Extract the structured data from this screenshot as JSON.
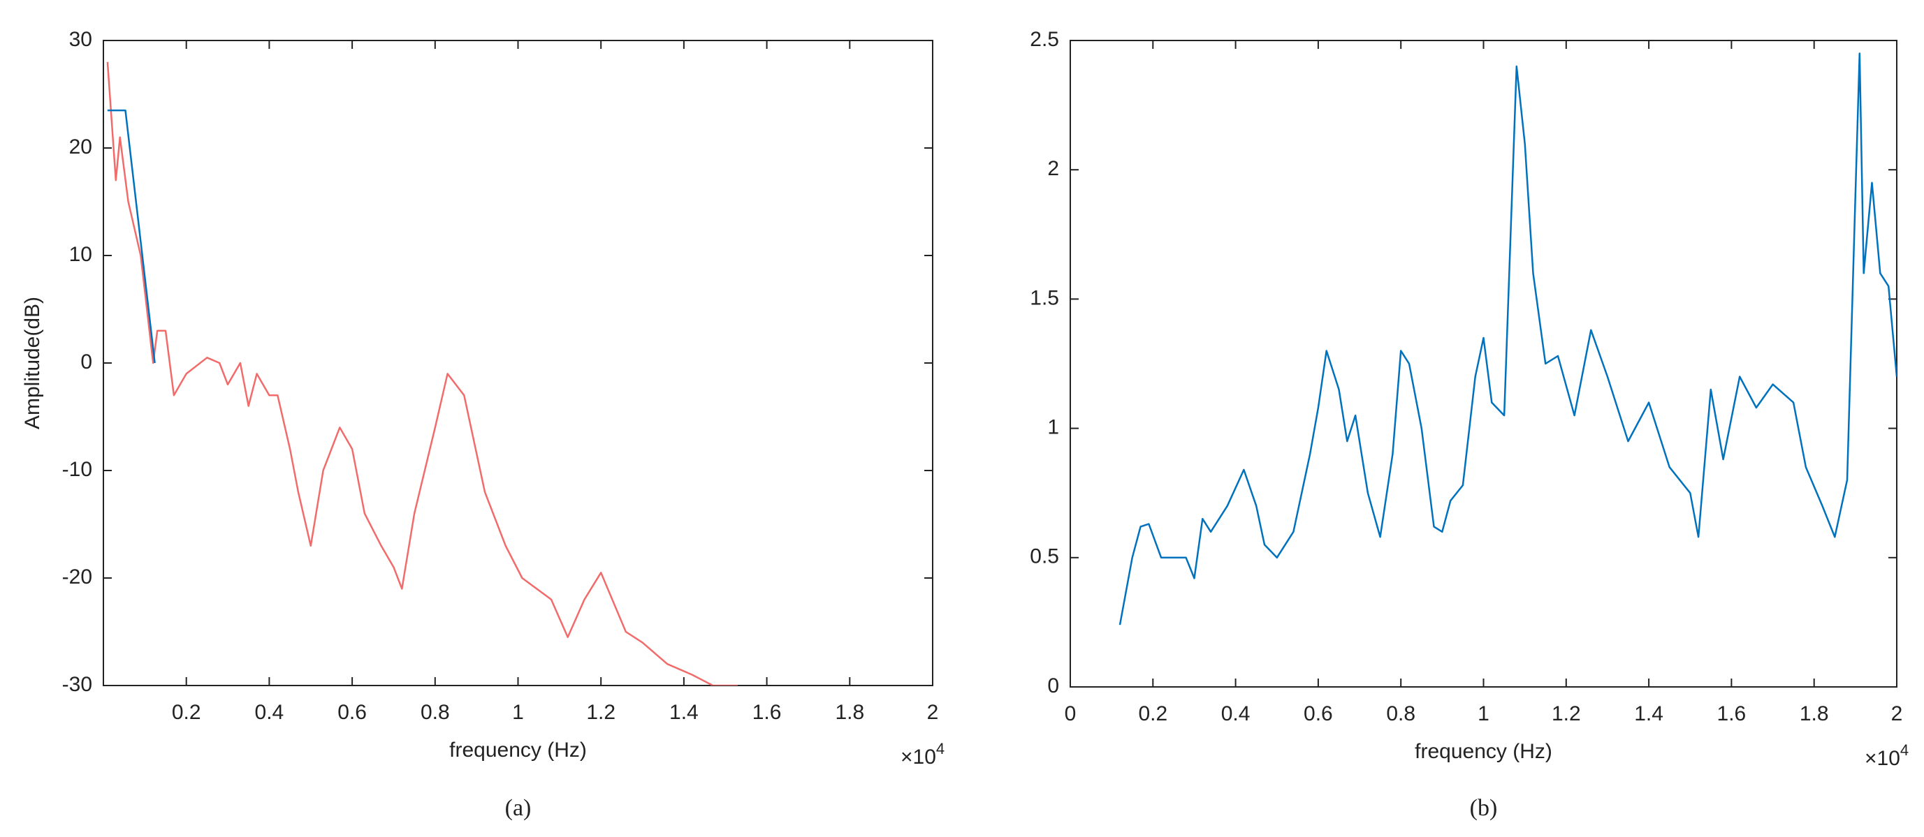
{
  "chart_data": [
    {
      "type": "line",
      "caption": "(a)",
      "xlabel": "frequency (Hz)",
      "ylabel": "Amplitude(dB)",
      "x_exponent": {
        "base": "×10",
        "power": "4"
      },
      "xlim": [
        0,
        20000
      ],
      "ylim": [
        -30,
        30
      ],
      "xticks": [
        {
          "value": 2000,
          "label": "0.2"
        },
        {
          "value": 4000,
          "label": "0.4"
        },
        {
          "value": 6000,
          "label": "0.6"
        },
        {
          "value": 8000,
          "label": "0.8"
        },
        {
          "value": 10000,
          "label": "1"
        },
        {
          "value": 12000,
          "label": "1.2"
        },
        {
          "value": 14000,
          "label": "1.4"
        },
        {
          "value": 16000,
          "label": "1.6"
        },
        {
          "value": 18000,
          "label": "1.8"
        },
        {
          "value": 20000,
          "label": "2"
        }
      ],
      "yticks": [
        -30,
        -20,
        -10,
        0,
        10,
        20,
        30
      ],
      "series": [
        {
          "color": "#f26b6b",
          "x": [
            100,
            300,
            400,
            600,
            900,
            1200,
            1300,
            1500,
            1700,
            2000,
            2500,
            2800,
            3000,
            3300,
            3500,
            3700,
            4000,
            4200,
            4500,
            4700,
            5000,
            5300,
            5700,
            6000,
            6300,
            6700,
            7000,
            7200,
            7500,
            8000,
            8300,
            8700,
            9200,
            9700,
            10100,
            10800,
            11200,
            11600,
            12000,
            12600,
            13000,
            13600,
            14200,
            14700,
            15300
          ],
          "values": [
            28,
            17,
            21,
            15,
            10,
            0,
            3,
            3,
            -3,
            -1,
            0.5,
            0,
            -2,
            0,
            -4,
            -1,
            -3,
            -3,
            -8,
            -12,
            -17,
            -10,
            -6,
            -8,
            -14,
            -17,
            -19,
            -21,
            -14,
            -6,
            -1,
            -3,
            -12,
            -17,
            -20,
            -22,
            -25.5,
            -22,
            -19.5,
            -25,
            -26,
            -28,
            -29,
            -30,
            -30
          ]
        },
        {
          "color": "#0072bd",
          "x": [
            100,
            530,
            1240
          ],
          "values": [
            23.5,
            23.5,
            0
          ]
        }
      ]
    },
    {
      "type": "line",
      "caption": "(b)",
      "xlabel": "frequency (Hz)",
      "x_exponent": {
        "base": "×10",
        "power": "4"
      },
      "xlim": [
        0,
        20000
      ],
      "ylim": [
        0,
        2.5
      ],
      "xticks": [
        0,
        {
          "value": 2000,
          "label": "0.2"
        },
        {
          "value": 4000,
          "label": "0.4"
        },
        {
          "value": 6000,
          "label": "0.6"
        },
        {
          "value": 8000,
          "label": "0.8"
        },
        {
          "value": 10000,
          "label": "1"
        },
        {
          "value": 12000,
          "label": "1.2"
        },
        {
          "value": 14000,
          "label": "1.4"
        },
        {
          "value": 16000,
          "label": "1.6"
        },
        {
          "value": 18000,
          "label": "1.8"
        },
        {
          "value": 20000,
          "label": "2"
        }
      ],
      "yticks": [
        0,
        0.5,
        1,
        1.5,
        2,
        2.5
      ],
      "series": [
        {
          "color": "#0072bd",
          "x": [
            1200,
            1500,
            1700,
            1900,
            2200,
            2600,
            2800,
            3000,
            3200,
            3400,
            3800,
            4200,
            4500,
            4700,
            5000,
            5400,
            5800,
            6000,
            6200,
            6500,
            6700,
            6900,
            7200,
            7500,
            7800,
            8000,
            8200,
            8500,
            8800,
            9000,
            9200,
            9500,
            9800,
            10000,
            10200,
            10500,
            10800,
            11000,
            11200,
            11500,
            11800,
            12200,
            12600,
            13000,
            13500,
            14000,
            14500,
            15000,
            15200,
            15500,
            15800,
            16200,
            16600,
            17000,
            17500,
            17800,
            18200,
            18500,
            18800,
            19000,
            19100,
            19200,
            19400,
            19600,
            19800,
            20000
          ],
          "values": [
            0.24,
            0.5,
            0.62,
            0.63,
            0.5,
            0.5,
            0.5,
            0.42,
            0.65,
            0.6,
            0.7,
            0.84,
            0.7,
            0.55,
            0.5,
            0.6,
            0.9,
            1.08,
            1.3,
            1.15,
            0.95,
            1.05,
            0.75,
            0.58,
            0.9,
            1.3,
            1.25,
            1.0,
            0.62,
            0.6,
            0.72,
            0.78,
            1.2,
            1.35,
            1.1,
            1.05,
            2.4,
            2.1,
            1.6,
            1.25,
            1.28,
            1.05,
            1.38,
            1.2,
            0.95,
            1.1,
            0.85,
            0.75,
            0.58,
            1.15,
            0.88,
            1.2,
            1.08,
            1.17,
            1.1,
            0.85,
            0.7,
            0.58,
            0.8,
            1.9,
            2.45,
            1.6,
            1.95,
            1.6,
            1.55,
            1.2
          ]
        }
      ]
    }
  ]
}
